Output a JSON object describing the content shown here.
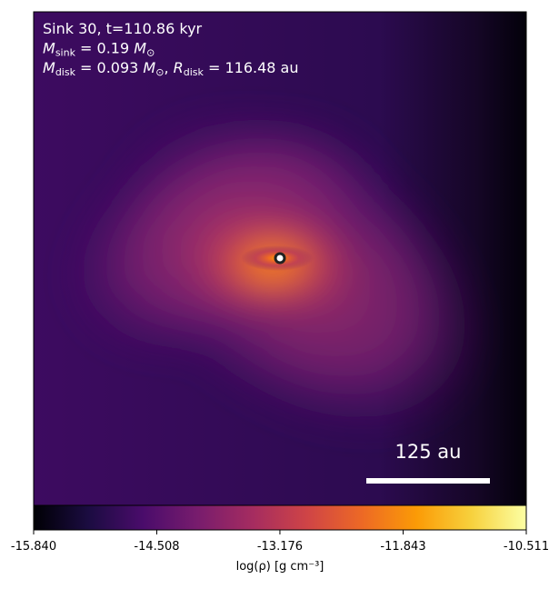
{
  "chart_data": {
    "type": "image",
    "annotation_lines": [
      [
        {
          "text": "Sink 30, t=110.86 kyr"
        }
      ],
      [
        {
          "text": "M",
          "style": "italic"
        },
        {
          "text": "sink",
          "style": "sub"
        },
        {
          "text": " = 0.19 "
        },
        {
          "text": "M",
          "style": "italic"
        },
        {
          "text": "⊙",
          "style": "sub"
        }
      ],
      [
        {
          "text": "M",
          "style": "italic"
        },
        {
          "text": "disk",
          "style": "sub"
        },
        {
          "text": " = 0.093 "
        },
        {
          "text": "M",
          "style": "italic"
        },
        {
          "text": "⊙",
          "style": "sub"
        },
        {
          "text": ", "
        },
        {
          "text": "R",
          "style": "italic"
        },
        {
          "text": "disk",
          "style": "sub"
        },
        {
          "text": " = 116.48 au"
        }
      ]
    ],
    "scale_bar_label": "125 au",
    "colorbar": {
      "label": "log(ρ) [g cm⁻³]",
      "lim": [
        -15.84,
        -10.511
      ],
      "ticks": [
        {
          "value": -15.84,
          "label": "-15.840"
        },
        -14.508,
        -13.176,
        -11.843,
        -10.511
      ],
      "colormap": [
        "#000004",
        "#1b0c41",
        "#4a0c6b",
        "#781c6d",
        "#a52c60",
        "#cf4446",
        "#ed6925",
        "#fb9b06",
        "#f7d13d",
        "#fcffa4"
      ]
    }
  }
}
